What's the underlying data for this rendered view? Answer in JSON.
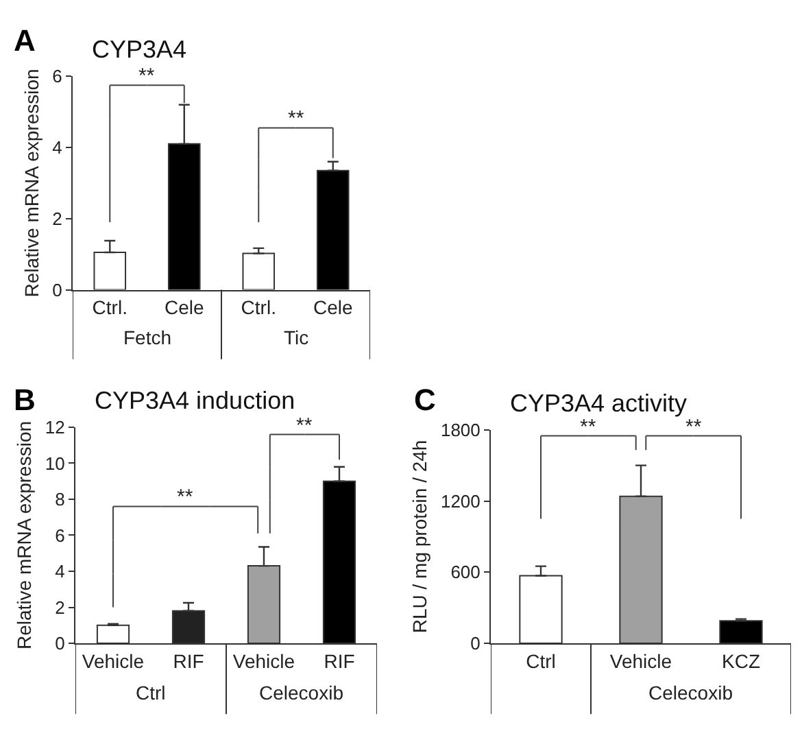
{
  "chart_data": [
    {
      "type": "bar",
      "title": "CYP3A4",
      "ylabel": "Relative mRNA expression",
      "categories": [
        "Ctrl.",
        "Cele",
        "Ctrl.",
        "Cele"
      ],
      "values": [
        1.05,
        4.1,
        1.02,
        3.35
      ],
      "colors": [
        "#ffffff",
        "#000000",
        "#ffffff",
        "#000000"
      ],
      "errors": [
        [
          1.05,
          1.38
        ],
        [
          4.1,
          5.2
        ],
        [
          1.02,
          1.17
        ],
        [
          3.35,
          3.6
        ]
      ],
      "ylim": [
        0,
        6
      ],
      "yticks": [
        0,
        2,
        4,
        6
      ],
      "annotations": [
        "A",
        "Fetch",
        "Tic",
        "**",
        "**"
      ]
    },
    {
      "type": "bar",
      "title": "CYP3A4 induction",
      "ylabel": "Relative mRNA expression",
      "categories": [
        "Vehicle",
        "RIF",
        "Vehicle",
        "RIF"
      ],
      "values": [
        1.0,
        1.8,
        4.3,
        9.0
      ],
      "colors": [
        "#ffffff",
        "#222222",
        "#a0a0a0",
        "#000000"
      ],
      "errors": [
        [
          1.0,
          1.08
        ],
        [
          1.8,
          2.25
        ],
        [
          4.3,
          5.35
        ],
        [
          9.0,
          9.8
        ]
      ],
      "ylim": [
        0,
        12
      ],
      "yticks": [
        0,
        2,
        4,
        6,
        8,
        10,
        12
      ],
      "annotations": [
        "B",
        "Ctrl",
        "Celecoxib",
        "**",
        "**"
      ]
    },
    {
      "type": "bar",
      "title": "CYP3A4 activity",
      "ylabel": "RLU / mg protein / 24h",
      "categories": [
        "Ctrl",
        "Vehicle",
        "KCZ"
      ],
      "values": [
        570,
        1240,
        190
      ],
      "colors": [
        "#ffffff",
        "#a0a0a0",
        "#000000"
      ],
      "errors": [
        [
          570,
          650
        ],
        [
          1240,
          1500
        ],
        [
          190,
          205
        ]
      ],
      "ylim": [
        0,
        1800
      ],
      "yticks": [
        0,
        600,
        1200,
        1800
      ],
      "annotations": [
        "C",
        "Celecoxib",
        "**",
        "**"
      ]
    }
  ]
}
